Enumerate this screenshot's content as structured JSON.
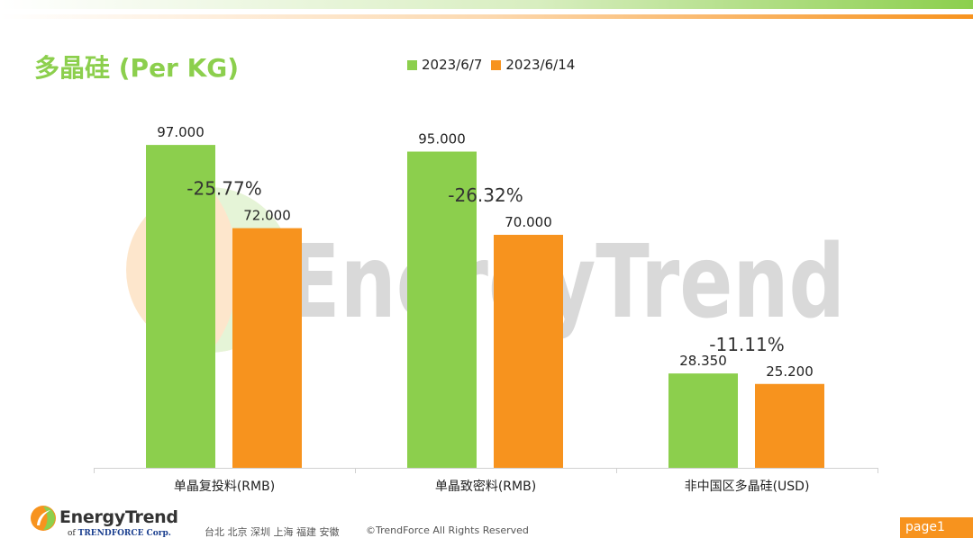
{
  "header": {
    "title": "多晶硅 (Per KG)"
  },
  "colors": {
    "green": "#8ccf4d",
    "orange": "#f7931e"
  },
  "watermark": {
    "text": "EnergyTrend"
  },
  "chart_data": {
    "type": "bar",
    "categories": [
      "单晶复投料(RMB)",
      "单晶致密料(RMB)",
      "非中国区多晶硅(USD)"
    ],
    "series": [
      {
        "name": "2023/6/7",
        "color": "#8ccf4d",
        "values": [
          97.0,
          95.0,
          28.35
        ],
        "labels": [
          "97.000",
          "95.000",
          "28.350"
        ]
      },
      {
        "name": "2023/6/14",
        "color": "#f7931e",
        "values": [
          72.0,
          70.0,
          25.2
        ],
        "labels": [
          "72.000",
          "70.000",
          "25.200"
        ]
      }
    ],
    "changes": [
      "-25.77%",
      "-26.32%",
      "-11.11%"
    ],
    "ylim": [
      0,
      100
    ],
    "title": "多晶硅 (Per KG)",
    "xlabel": "",
    "ylabel": "",
    "legend": "top"
  },
  "footer": {
    "brand": "EnergyTrend",
    "brand_sub_prefix": "of",
    "brand_sub_name": "TRENDFORCE Corp.",
    "cities": "台北  北京  深圳  上海  福建  安徽",
    "copyright": "©TrendForce All Rights Reserved",
    "page": "page1"
  }
}
